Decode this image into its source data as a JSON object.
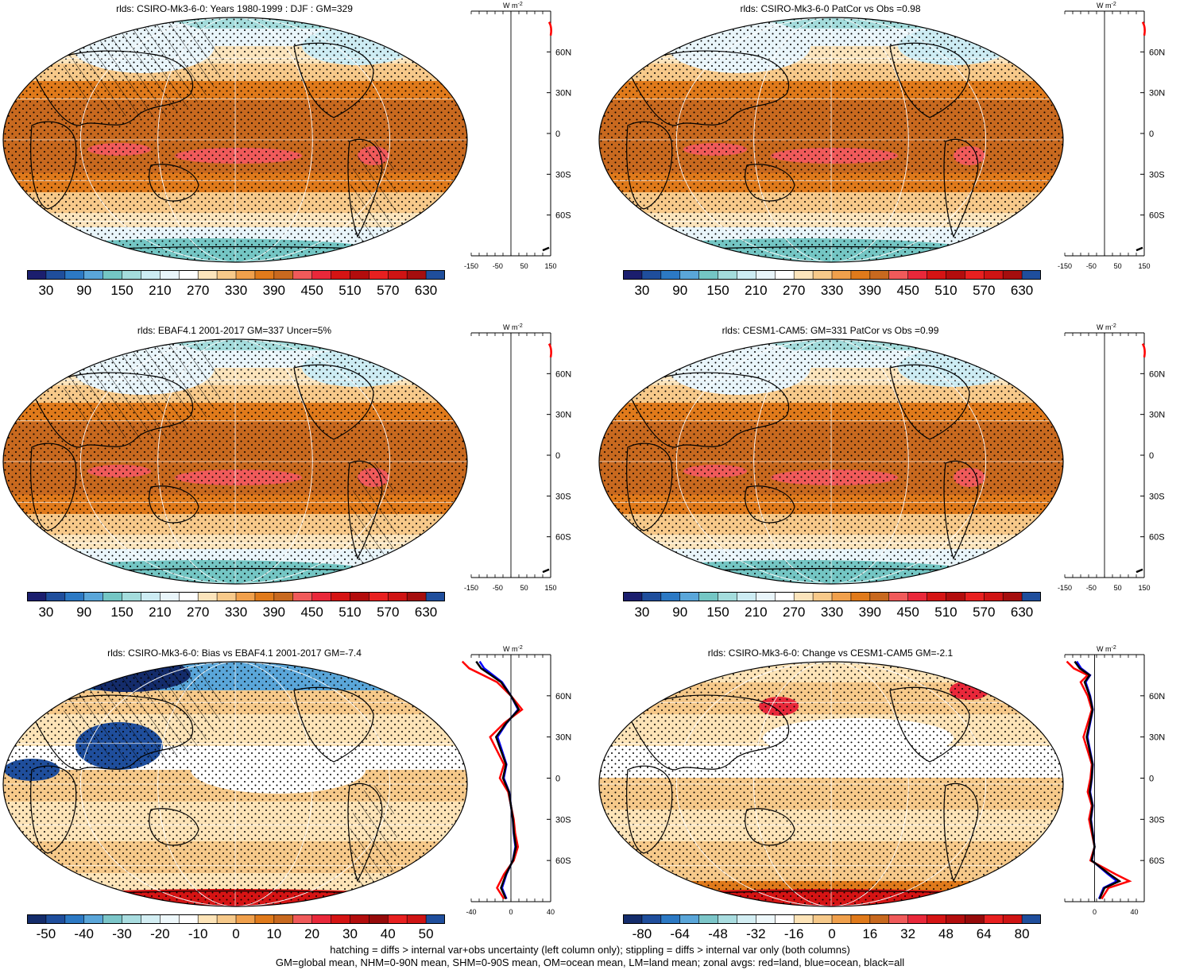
{
  "panels": [
    {
      "title": "rlds: CSIRO-Mk3-6-0: Years 1980-1999 : DJF : GM=329",
      "kind": "abs",
      "hatch": true
    },
    {
      "title": "rlds: CSIRO-Mk3-6-0 PatCor vs Obs =0.98",
      "kind": "abs",
      "hatch": false
    },
    {
      "title": "rlds: EBAF4.1 2001-2017 GM=337 Uncer=5%",
      "kind": "abs",
      "hatch": true
    },
    {
      "title": "rlds: CESM1-CAM5: GM=331 PatCor vs Obs =0.99",
      "kind": "abs",
      "hatch": false
    },
    {
      "title": "rlds: CSIRO-Mk3-6-0: Bias vs EBAF4.1 2001-2017 GM=-7.4",
      "kind": "bias",
      "hatch": true
    },
    {
      "title": "rlds: CSIRO-Mk3-6-0: Change vs CESM1-CAM5 GM=-2.1",
      "kind": "change",
      "hatch": false
    }
  ],
  "colorbars": {
    "abs": [
      "30",
      "90",
      "150",
      "210",
      "270",
      "330",
      "390",
      "450",
      "510",
      "570",
      "630"
    ],
    "bias": [
      "-50",
      "-40",
      "-30",
      "-20",
      "-10",
      "0",
      "10",
      "20",
      "30",
      "40",
      "50"
    ],
    "change": [
      "-80",
      "-64",
      "-48",
      "-32",
      "-16",
      "0",
      "16",
      "32",
      "48",
      "64",
      "80"
    ]
  },
  "zonal": {
    "unit": "W m",
    "unit_sup": "-2",
    "lat_labels": [
      "60N",
      "30N",
      "0",
      "30S",
      "60S"
    ],
    "x_ticks_abs": [
      "-150",
      "-50",
      "50",
      "150"
    ],
    "x_ticks_bias": [
      "-40",
      "0",
      "40"
    ],
    "x_ticks_change": [
      "0",
      "40"
    ]
  },
  "colors": {
    "abs_palette": [
      "#1b1e6e",
      "#1f4e9c",
      "#2c79c4",
      "#5aa6d9",
      "#74c6c4",
      "#a4dcdc",
      "#cdecf3",
      "#e9f5fa",
      "#ffffff",
      "#fbe4bc",
      "#f7c98a",
      "#f0a04c",
      "#e07a1b",
      "#c8691f",
      "#f05a5a",
      "#e9283a",
      "#d51414",
      "#b30d0d",
      "#e82020",
      "#cf1414",
      "#a50e0e",
      "#1f4e9c"
    ],
    "div_palette": [
      "#142c6b",
      "#1f4e9c",
      "#2c79c4",
      "#5aa6d9",
      "#7cc6c9",
      "#a9dde0",
      "#d3eef3",
      "#eef8fb",
      "#ffffff",
      "#fde4b8",
      "#f6c98a",
      "#f0a04c",
      "#e07a1b",
      "#c8691f",
      "#f05a5a",
      "#e9283a",
      "#d51414",
      "#b30d0d",
      "#960a0a",
      "#e82020",
      "#cf1414",
      "#1f4e9c"
    ],
    "land": "#000000",
    "zonal_land": "#ff0000",
    "zonal_ocean": "#0000ff",
    "zonal_all": "#000000"
  },
  "footer": {
    "line1": "hatching = diffs > internal var+obs uncertainty (left column only); stippling = diffs > internal var only (both columns)",
    "line2": "GM=global mean, NHM=0-90N mean, SHM=0-90S mean, OM=ocean mean, LM=land mean; zonal avgs: red=land, blue=ocean, black=all"
  }
}
